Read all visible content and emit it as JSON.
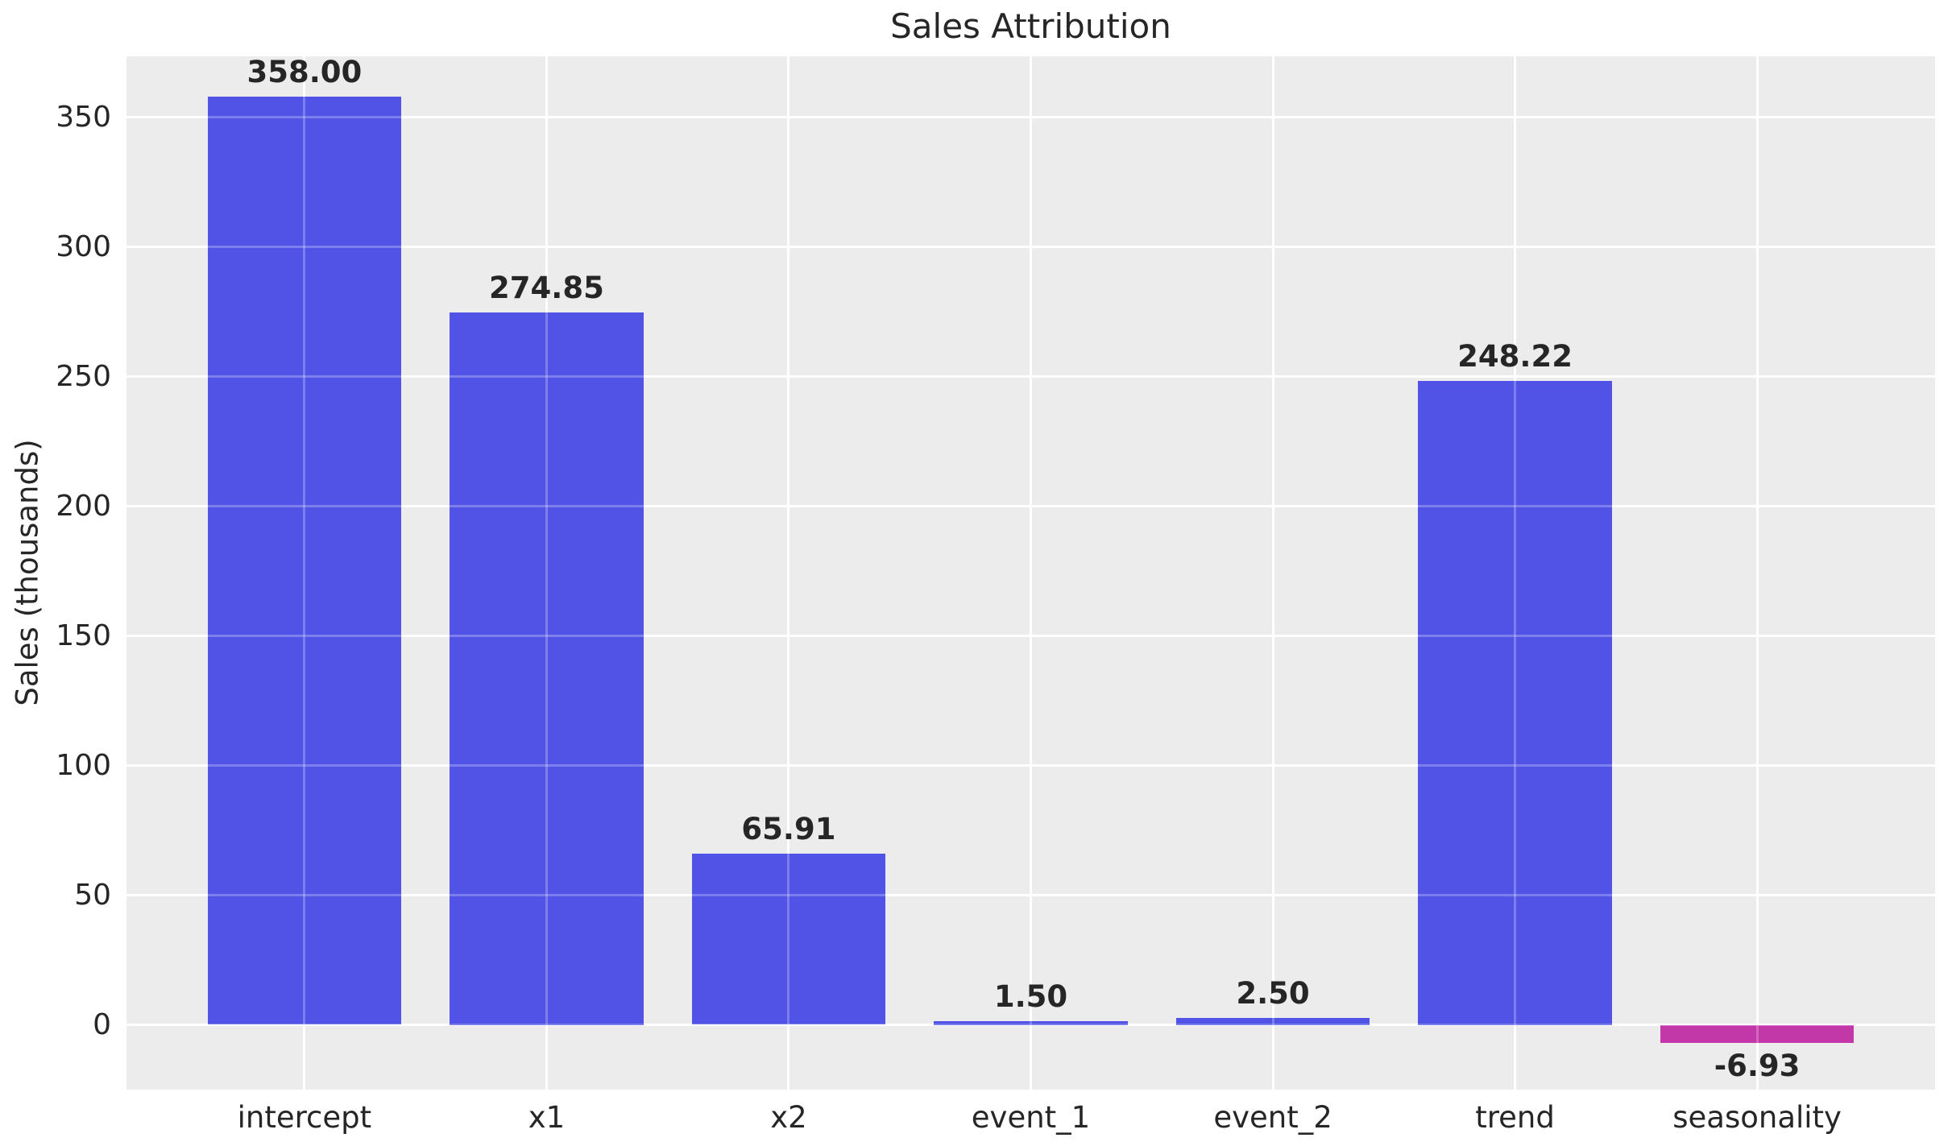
{
  "chart_data": {
    "type": "bar",
    "title": "Sales Attribution",
    "xlabel": "",
    "ylabel": "Sales (thousands)",
    "categories": [
      "intercept",
      "x1",
      "x2",
      "event_1",
      "event_2",
      "trend",
      "seasonality"
    ],
    "values": [
      358.0,
      274.85,
      65.91,
      1.5,
      2.5,
      248.22,
      -6.93
    ],
    "value_labels": [
      "358.00",
      "274.85",
      "65.91",
      "1.50",
      "2.50",
      "248.22",
      "-6.93"
    ],
    "bar_colors": [
      "#5053e6",
      "#5053e6",
      "#5053e6",
      "#5053e6",
      "#5053e6",
      "#5053e6",
      "#c238a8"
    ],
    "positive_color": "#5053e6",
    "negative_color": "#c238a8",
    "yticks": [
      0,
      50,
      100,
      150,
      200,
      250,
      300,
      350
    ],
    "ylim": [
      -25,
      373.5
    ],
    "xlim": [
      -0.735,
      6.735
    ],
    "bar_width": 0.8,
    "grid": true,
    "legend": "none",
    "colors": {
      "plot_bg": "#ececec",
      "figure_bg": "#ffffff",
      "grid": "#ffffff",
      "text": "#262626"
    }
  }
}
